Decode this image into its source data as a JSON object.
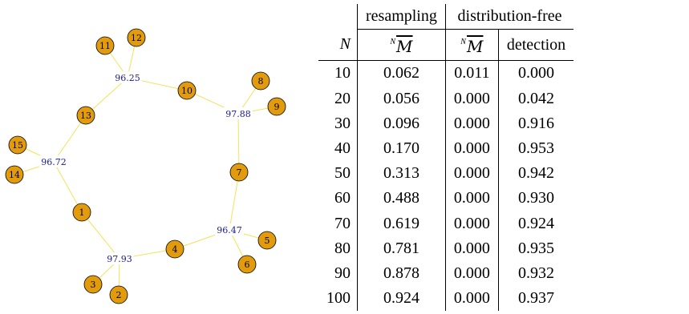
{
  "graph": {
    "node_fill": "#e39b0e",
    "edge_color": "#f2e35a",
    "label_color": "#1a1a8c",
    "nodes": [
      {
        "id": "1"
      },
      {
        "id": "2"
      },
      {
        "id": "3"
      },
      {
        "id": "4"
      },
      {
        "id": "5"
      },
      {
        "id": "6"
      },
      {
        "id": "7"
      },
      {
        "id": "8"
      },
      {
        "id": "9"
      },
      {
        "id": "10"
      },
      {
        "id": "11"
      },
      {
        "id": "12"
      },
      {
        "id": "13"
      },
      {
        "id": "14"
      },
      {
        "id": "15"
      }
    ],
    "hubs": [
      {
        "id": "h1",
        "label": "96.25"
      },
      {
        "id": "h2",
        "label": "97.88"
      },
      {
        "id": "h3",
        "label": "96.72"
      },
      {
        "id": "h4",
        "label": "96.47"
      },
      {
        "id": "h5",
        "label": "97.93"
      }
    ]
  },
  "table": {
    "group_headers": [
      "resampling",
      "distribution-free"
    ],
    "N_header": "N",
    "sub_headers": {
      "msym_sup": "N",
      "msym_base": "M",
      "detection": "detection"
    },
    "rows": [
      {
        "N": "10",
        "resampling": "0.062",
        "df_m": "0.011",
        "detection": "0.000"
      },
      {
        "N": "20",
        "resampling": "0.056",
        "df_m": "0.000",
        "detection": "0.042"
      },
      {
        "N": "30",
        "resampling": "0.096",
        "df_m": "0.000",
        "detection": "0.916"
      },
      {
        "N": "40",
        "resampling": "0.170",
        "df_m": "0.000",
        "detection": "0.953"
      },
      {
        "N": "50",
        "resampling": "0.313",
        "df_m": "0.000",
        "detection": "0.942"
      },
      {
        "N": "60",
        "resampling": "0.488",
        "df_m": "0.000",
        "detection": "0.930"
      },
      {
        "N": "70",
        "resampling": "0.619",
        "df_m": "0.000",
        "detection": "0.924"
      },
      {
        "N": "80",
        "resampling": "0.781",
        "df_m": "0.000",
        "detection": "0.935"
      },
      {
        "N": "90",
        "resampling": "0.878",
        "df_m": "0.000",
        "detection": "0.932"
      },
      {
        "N": "100",
        "resampling": "0.924",
        "df_m": "0.000",
        "detection": "0.937"
      }
    ]
  }
}
